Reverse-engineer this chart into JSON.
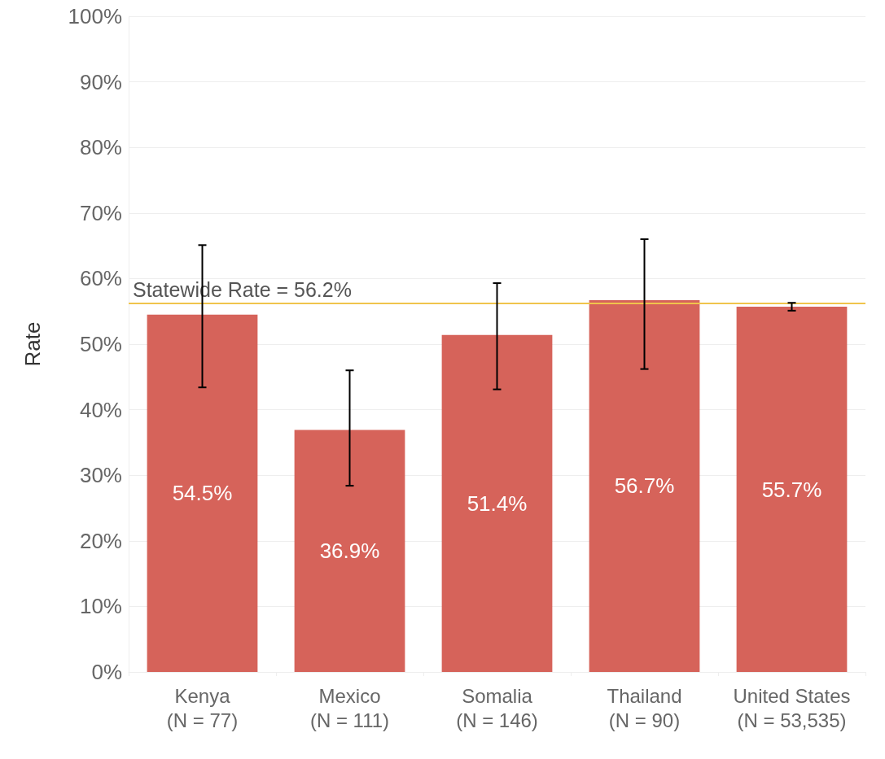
{
  "chart_data": {
    "type": "bar",
    "ylabel": "Rate",
    "categories": [
      "Kenya\n(N = 77)",
      "Mexico\n(N = 111)",
      "Somalia\n(N = 146)",
      "Thailand\n(N = 90)",
      "United States\n(N = 53,535)"
    ],
    "values": [
      54.5,
      36.9,
      51.4,
      56.7,
      55.7
    ],
    "value_labels": [
      "54.5%",
      "36.9%",
      "51.4%",
      "56.7%",
      "55.7%"
    ],
    "errors": [
      [
        43.4,
        65.1
      ],
      [
        28.4,
        46.0
      ],
      [
        43.1,
        59.3
      ],
      [
        46.2,
        66.0
      ],
      [
        55.1,
        56.3
      ]
    ],
    "color": "#d6635a",
    "ylim": [
      0,
      100
    ],
    "yticks": [
      {
        "value": 0,
        "label": "0%"
      },
      {
        "value": 10,
        "label": "10%"
      },
      {
        "value": 20,
        "label": "20%"
      },
      {
        "value": 30,
        "label": "30%"
      },
      {
        "value": 40,
        "label": "40%"
      },
      {
        "value": 50,
        "label": "50%"
      },
      {
        "value": 60,
        "label": "60%"
      },
      {
        "value": 70,
        "label": "70%"
      },
      {
        "value": 80,
        "label": "80%"
      },
      {
        "value": 90,
        "label": "90%"
      },
      {
        "value": 100,
        "label": "100%"
      }
    ],
    "ref_lines": [
      {
        "axis": "y",
        "value": 56.2,
        "label": "Statewide Rate = 56.2%",
        "color": "#f0c44c"
      }
    ],
    "grid": "y"
  }
}
